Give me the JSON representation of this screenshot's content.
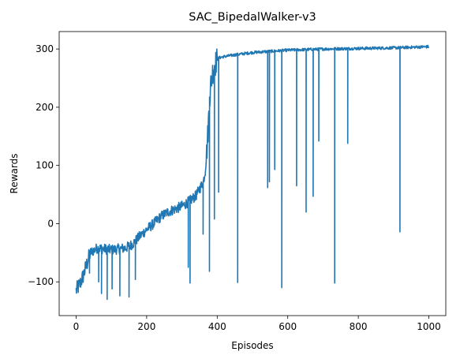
{
  "chart_data": {
    "type": "line",
    "title": "SAC_BipedalWalker-v3",
    "xlabel": "Episodes",
    "ylabel": "Rewards",
    "xlim": [
      -48,
      1048
    ],
    "ylim": [
      -158,
      330
    ],
    "xticks": [
      0,
      200,
      400,
      600,
      800,
      1000
    ],
    "yticks": [
      -100,
      0,
      100,
      200,
      300
    ],
    "grid": false,
    "legend": "none",
    "line_color": "#1f77b4",
    "base_curve": [
      [
        0,
        -115
      ],
      [
        10,
        -105
      ],
      [
        20,
        -90
      ],
      [
        30,
        -70
      ],
      [
        40,
        -50
      ],
      [
        60,
        -42
      ],
      [
        100,
        -45
      ],
      [
        140,
        -42
      ],
      [
        160,
        -35
      ],
      [
        180,
        -22
      ],
      [
        200,
        -10
      ],
      [
        220,
        0
      ],
      [
        240,
        12
      ],
      [
        260,
        20
      ],
      [
        280,
        25
      ],
      [
        300,
        30
      ],
      [
        320,
        38
      ],
      [
        340,
        48
      ],
      [
        350,
        60
      ],
      [
        360,
        70
      ],
      [
        366,
        90
      ],
      [
        370,
        120
      ],
      [
        374,
        160
      ],
      [
        378,
        210
      ],
      [
        382,
        240
      ],
      [
        386,
        258
      ],
      [
        392,
        270
      ],
      [
        398,
        280
      ],
      [
        405,
        285
      ],
      [
        420,
        287
      ],
      [
        450,
        290
      ],
      [
        500,
        294
      ],
      [
        550,
        296
      ],
      [
        600,
        298
      ],
      [
        700,
        300
      ],
      [
        800,
        301
      ],
      [
        900,
        302
      ],
      [
        1000,
        304
      ]
    ],
    "dips": [
      {
        "episode": 38,
        "reward": -85
      },
      {
        "episode": 64,
        "reward": -100
      },
      {
        "episode": 72,
        "reward": -120
      },
      {
        "episode": 88,
        "reward": -130
      },
      {
        "episode": 102,
        "reward": -112
      },
      {
        "episode": 124,
        "reward": -124
      },
      {
        "episode": 150,
        "reward": -126
      },
      {
        "episode": 168,
        "reward": -96
      },
      {
        "episode": 318,
        "reward": -75
      },
      {
        "episode": 323,
        "reward": -102
      },
      {
        "episode": 360,
        "reward": -18
      },
      {
        "episode": 378,
        "reward": -82
      },
      {
        "episode": 392,
        "reward": 8
      },
      {
        "episode": 404,
        "reward": 54
      },
      {
        "episode": 458,
        "reward": -101
      },
      {
        "episode": 543,
        "reward": 62
      },
      {
        "episode": 548,
        "reward": 72
      },
      {
        "episode": 563,
        "reward": 93
      },
      {
        "episode": 583,
        "reward": -110
      },
      {
        "episode": 625,
        "reward": 65
      },
      {
        "episode": 652,
        "reward": 20
      },
      {
        "episode": 672,
        "reward": 47
      },
      {
        "episode": 688,
        "reward": 142
      },
      {
        "episode": 733,
        "reward": -102
      },
      {
        "episode": 770,
        "reward": 138
      },
      {
        "episode": 918,
        "reward": -14
      }
    ]
  }
}
